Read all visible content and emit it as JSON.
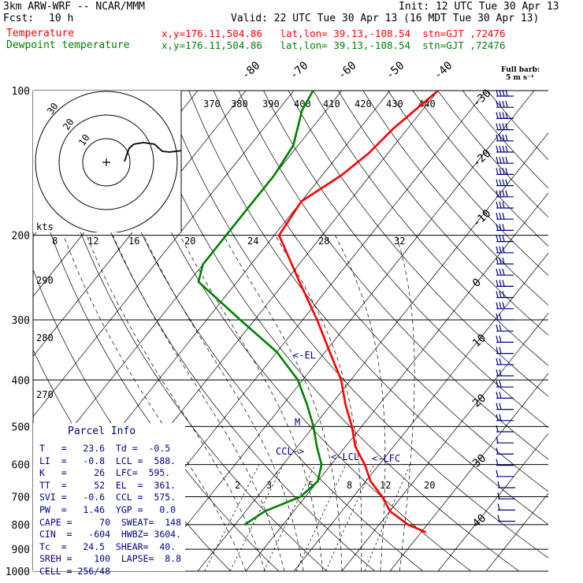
{
  "header": {
    "model_line": "3km ARW-WRF -- NCAR/MMM",
    "init_line": "Init: 12 UTC Tue 30 Apr 13",
    "fcst_label": "Fcst:",
    "fcst_value": "10 h",
    "valid_line": "Valid: 22 UTC Tue 30 Apr 13 (16 MDT Tue 30 Apr 13)",
    "temp_label": "Temperature",
    "temp_info": "x,y=176.11,504.86   lat,lon= 39.13,-108.54  stn=GJT ,72476",
    "dew_label": "Dewpoint temperature",
    "dew_info": "x,y=176.11,504.86   lat,lon= 39.13,-108.54  stn=GJT ,72476"
  },
  "colors": {
    "temperature": "#ff0000",
    "dewpoint": "#008000",
    "parcel": "#00008b",
    "barbs": "#00008b",
    "grid": "#000000"
  },
  "barb_legend": {
    "line1": "Full barb:",
    "line2": "5 m s⁻¹"
  },
  "hodograph": {
    "units": "kts",
    "ring_labels": [
      "10",
      "20",
      "30"
    ],
    "axis_labels": [
      "8",
      "12",
      "16",
      "20",
      "24",
      "28",
      "32"
    ]
  },
  "annotations": {
    "el": "<-EL",
    "lcl": "<-LCL",
    "lfc": "<-LFC",
    "ccl": "CCL->",
    "m": "M"
  },
  "parcel_info": {
    "title": "Parcel Info",
    "rows": [
      "T   =   23.6  Td =  -0.5",
      "LI  =   -0.8  LCL =  588.",
      "K   =     26  LFC=  595.",
      "TT  =     52  EL  =  361.",
      "SVI =   -0.6  CCL =  575.",
      "PW  =   1.46  YGP =   0.0",
      "CAPE =     70  SWEAT=  148",
      "CIN  =   -604  HWBZ= 3604.",
      "Tc  =   24.5  SHEAR=  40.",
      "SREH =    100  LAPSE=  8.8",
      "CELL = 256/48"
    ]
  },
  "chart_data": {
    "type": "line",
    "title": "",
    "xlabel": "",
    "ylabel": "",
    "y_scale": "log-pressure",
    "pressure_ticks": [
      "100",
      "200",
      "300",
      "400",
      "500",
      "600",
      "700",
      "800",
      "900",
      "1000"
    ],
    "isotherm_labels": [
      "-80",
      "-70",
      "-60",
      "-50",
      "-40",
      "-30",
      "-20",
      "-10",
      "0",
      "10",
      "20",
      "30",
      "40"
    ],
    "theta_labels_top": [
      "370",
      "380",
      "390",
      "400",
      "410",
      "420",
      "430",
      "440"
    ],
    "theta_labels_left": [
      "290",
      "280",
      "270"
    ],
    "mixing_ratio_labels": [
      "2",
      "3",
      "5",
      "8",
      "12",
      "20"
    ],
    "series": [
      {
        "name": "Temperature",
        "pressure": [
          830,
          800,
          750,
          700,
          650,
          600,
          550,
          500,
          450,
          400,
          350,
          300,
          250,
          200,
          170,
          150,
          135,
          120,
          100
        ],
        "values": [
          31,
          26,
          20,
          16,
          11,
          7,
          2,
          -2,
          -7,
          -12,
          -19,
          -27,
          -37,
          -49,
          -50,
          -46,
          -44,
          -43,
          -40
        ]
      },
      {
        "name": "Dewpoint temperature",
        "pressure": [
          800,
          750,
          700,
          650,
          600,
          550,
          500,
          450,
          400,
          350,
          300,
          250,
          230,
          200,
          170,
          150,
          130,
          110,
          100
        ],
        "values": [
          -8,
          -6,
          -1,
          0,
          -2,
          -6,
          -10,
          -15,
          -21,
          -30,
          -43,
          -58,
          -60,
          -60,
          -60,
          -60,
          -61,
          -65,
          -66
        ]
      }
    ],
    "wind_barbs_levels": 40
  }
}
